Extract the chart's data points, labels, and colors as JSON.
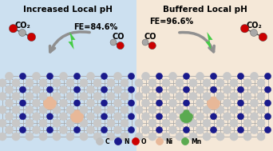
{
  "title_left": "Increased Local pH",
  "title_right": "Buffered Local pH",
  "fe_left": "FE=84.6%",
  "fe_right": "FE=96.6%",
  "co2_label": "CO₂",
  "co_label": "CO",
  "legend_items": [
    "C",
    "N",
    "O",
    "Ni",
    "Mn"
  ],
  "legend_colors": [
    "#c0c0c0",
    "#1a1a8c",
    "#cc0000",
    "#e8b898",
    "#5aaa50"
  ],
  "bg_left": "#cce0f0",
  "bg_right": "#f5e8d8",
  "atom_c_color": "#c8c8c8",
  "atom_n_color": "#1a1a8c",
  "atom_o_color": "#cc0000",
  "atom_ni_color": "#e8b898",
  "atom_mn_color": "#5aaa50",
  "co2_gray": "#a8a8a8",
  "arrow_color": "#909090",
  "lightning_color": "#44cc44",
  "title_fontsize": 7.5,
  "fe_fontsize": 7.0
}
